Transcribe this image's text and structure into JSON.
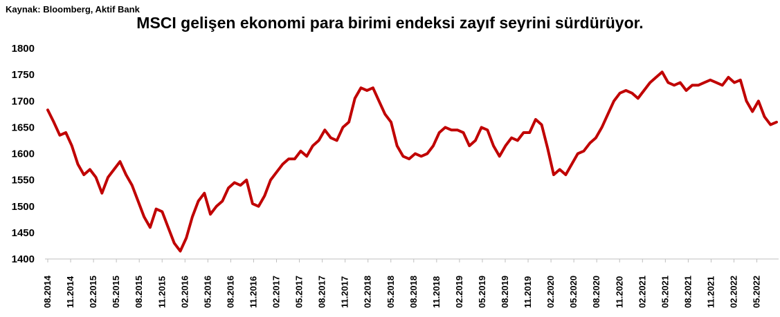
{
  "source": "Kaynak: Bloomberg, Aktif Bank",
  "title": "MSCI gelişen ekonomi para birimi endeksi zayıf seyrini sürdürüyor.",
  "chart_data": {
    "type": "line",
    "title": "MSCI gelişen ekonomi para birimi endeksi zayıf seyrini sürdürüyor.",
    "ylim": [
      1400,
      1800
    ],
    "yticks": [
      1400,
      1450,
      1500,
      1550,
      1600,
      1650,
      1700,
      1750,
      1800
    ],
    "xticks": [
      "08.2014",
      "11.2014",
      "02.2015",
      "05.2015",
      "08.2015",
      "11.2015",
      "02.2016",
      "05.2016",
      "08.2016",
      "11.2016",
      "02.2017",
      "05.2017",
      "08.2017",
      "11.2017",
      "02.2018",
      "05.2018",
      "08.2018",
      "11.2018",
      "02.2019",
      "05.2019",
      "08.2019",
      "11.2019",
      "02.2020",
      "05.2020",
      "08.2020",
      "11.2020",
      "02.2021",
      "05.2021",
      "08.2021",
      "11.2021",
      "02.2022",
      "05.2022"
    ],
    "grid": false,
    "line_color": "#c00000",
    "series": [
      {
        "values": [
          1683,
          1660,
          1635,
          1640,
          1615,
          1580,
          1560,
          1570,
          1555,
          1525,
          1555,
          1570,
          1585,
          1560,
          1540,
          1510,
          1480,
          1460,
          1495,
          1490,
          1460,
          1430,
          1415,
          1440,
          1480,
          1510,
          1525,
          1485,
          1500,
          1510,
          1535,
          1545,
          1540,
          1550,
          1505,
          1500,
          1520,
          1550,
          1565,
          1580,
          1590,
          1590,
          1605,
          1595,
          1615,
          1625,
          1645,
          1630,
          1625,
          1650,
          1660,
          1705,
          1725,
          1720,
          1725,
          1700,
          1675,
          1660,
          1615,
          1595,
          1590,
          1600,
          1595,
          1600,
          1615,
          1640,
          1650,
          1645,
          1645,
          1640,
          1615,
          1625,
          1650,
          1645,
          1615,
          1595,
          1615,
          1630,
          1625,
          1640,
          1640,
          1665,
          1655,
          1610,
          1560,
          1570,
          1560,
          1580,
          1600,
          1605,
          1620,
          1630,
          1650,
          1675,
          1700,
          1715,
          1720,
          1715,
          1705,
          1720,
          1735,
          1745,
          1755,
          1735,
          1730,
          1735,
          1720,
          1730,
          1730,
          1735,
          1740,
          1735,
          1730,
          1745,
          1735,
          1740,
          1700,
          1680,
          1700,
          1670,
          1655,
          1660
        ]
      }
    ]
  }
}
